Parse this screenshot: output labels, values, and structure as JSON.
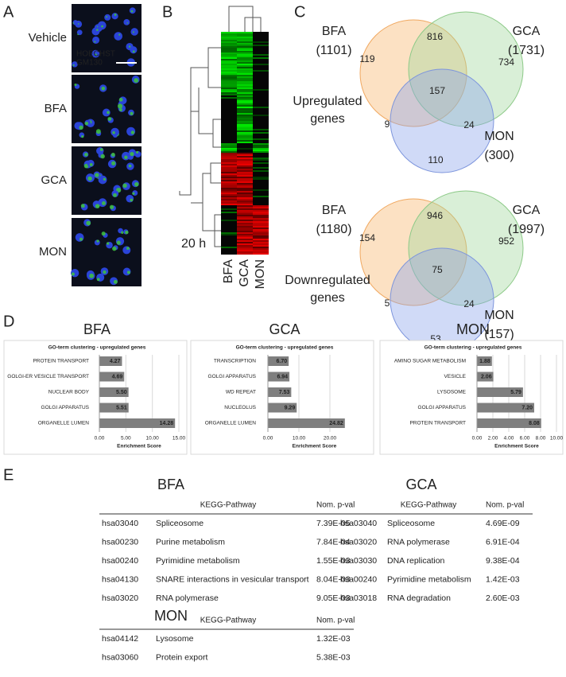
{
  "panel_a": {
    "label": "A",
    "rows": [
      "Vehicle",
      "BFA",
      "GCA",
      "MON"
    ],
    "stains": [
      "HOECHST",
      "GM130"
    ]
  },
  "panel_b": {
    "label": "B",
    "time": "20 h",
    "columns": [
      "BFA",
      "GCA",
      "MON"
    ]
  },
  "panel_c": {
    "label": "C",
    "venns": [
      {
        "sets": [
          {
            "name": "BFA",
            "count": "(1101)"
          },
          {
            "name": "GCA",
            "count": "(1731)"
          },
          {
            "name": "MON",
            "count": "(300)"
          }
        ],
        "regions": [
          "119",
          "816",
          "734",
          "157",
          "9",
          "24",
          "110"
        ],
        "caption": [
          "Upregulated",
          "genes"
        ],
        "caption_color": "#e8312f"
      },
      {
        "sets": [
          {
            "name": "BFA",
            "count": "(1180)"
          },
          {
            "name": "GCA",
            "count": "(1997)"
          },
          {
            "name": "MON",
            "count": "(157)"
          }
        ],
        "regions": [
          "154",
          "946",
          "952",
          "75",
          "5",
          "24",
          "53"
        ],
        "caption": [
          "Downregulated",
          "genes"
        ],
        "caption_color": "#2db34a"
      }
    ]
  },
  "panel_d": {
    "label": "D",
    "charts": [
      {
        "type": "bar",
        "title": "BFA",
        "subtitle": "GO-term clustering - upregulated genes",
        "categories": [
          "PROTEIN TRANSPORT",
          "GOLGI-ER VESICLE TRANSPORT",
          "NUCLEAR BODY",
          "GOLGI APPARATUS",
          "ORGANELLE LUMEN"
        ],
        "values": [
          4.27,
          4.69,
          5.5,
          5.51,
          14.28
        ],
        "value_labels": [
          "4.27",
          "4.69",
          "5.50",
          "5.51",
          "14.28"
        ],
        "color": "#7f7f7f",
        "grid": true,
        "xlim": [
          0,
          15
        ],
        "xticks": [
          {
            "value": 0,
            "label": "0.00"
          },
          {
            "value": 5,
            "label": "5.00"
          },
          {
            "value": 10,
            "label": "10.00"
          },
          {
            "value": 15,
            "label": "15.00"
          }
        ],
        "xlabel": "Enrichment Score"
      },
      {
        "type": "bar",
        "title": "GCA",
        "subtitle": "GO-term clustering - upregulated genes",
        "categories": [
          "TRANSCRIPTION",
          "GOLGI APPARATUS",
          "WD REPEAT",
          "NUCLEOLUS",
          "ORGANELLE LUMEN"
        ],
        "values": [
          6.7,
          6.94,
          7.53,
          9.29,
          24.82
        ],
        "value_labels": [
          "6.70",
          "6.94",
          "7.53",
          "9.29",
          "24.82"
        ],
        "color": "#7f7f7f",
        "grid": true,
        "xlim": [
          0,
          30
        ],
        "xticks": [
          {
            "value": 0,
            "label": "0.00"
          },
          {
            "value": 10,
            "label": "10.00"
          },
          {
            "value": 20,
            "label": "20.00"
          }
        ],
        "xlabel": "Enrichment Score"
      },
      {
        "type": "bar",
        "title": "MON",
        "subtitle": "GO-term clustering - upregulated genes",
        "categories": [
          "AMINO SUGAR METABOLISM",
          "VESICLE",
          "LYSOSOME",
          "GOLGI APPARATUS",
          "PROTEIN TRANSPORT"
        ],
        "values": [
          1.88,
          2.06,
          5.79,
          7.2,
          8.08
        ],
        "value_labels": [
          "1.88",
          "2.06",
          "5.79",
          "7.20",
          "8.08"
        ],
        "color": "#7f7f7f",
        "grid": true,
        "xlim": [
          0,
          10
        ],
        "xticks": [
          {
            "value": 0,
            "label": "0.00"
          },
          {
            "value": 2,
            "label": "2.00"
          },
          {
            "value": 4,
            "label": "4.00"
          },
          {
            "value": 6,
            "label": "6.00"
          },
          {
            "value": 8,
            "label": "8.00"
          },
          {
            "value": 10,
            "label": "10.00"
          }
        ],
        "xlabel": "Enrichment Score"
      }
    ]
  },
  "panel_e": {
    "label": "E",
    "tables": [
      {
        "title": "BFA",
        "header": [
          "KEGG-Pathway",
          "Nom. p-val"
        ],
        "rows": [
          [
            "hsa03040",
            "Spliceosome",
            "7.39E-05"
          ],
          [
            "hsa00230",
            "Purine metabolism",
            "7.84E-04"
          ],
          [
            "hsa00240",
            "Pyrimidine metabolism",
            "1.55E-03"
          ],
          [
            "hsa04130",
            "SNARE interactions in vesicular transport",
            "8.04E-03"
          ],
          [
            "hsa03020",
            "RNA polymerase",
            "9.05E-03"
          ]
        ]
      },
      {
        "title": "GCA",
        "header": [
          "KEGG-Pathway",
          "Nom. p-val"
        ],
        "rows": [
          [
            "hsa03040",
            "Spliceosome",
            "4.69E-09"
          ],
          [
            "hsa03020",
            "RNA polymerase",
            "6.91E-04"
          ],
          [
            "hsa03030",
            "DNA replication",
            "9.38E-04"
          ],
          [
            "hsa00240",
            "Pyrimidine metabolism",
            "1.42E-03"
          ],
          [
            "hsa03018",
            "RNA degradation",
            "2.60E-03"
          ]
        ]
      },
      {
        "title": "MON",
        "header": [
          "KEGG-Pathway",
          "Nom. p-val"
        ],
        "rows": [
          [
            "hsa04142",
            "Lysosome",
            "1.32E-03"
          ],
          [
            "hsa03060",
            "Protein export",
            "5.38E-03"
          ]
        ]
      }
    ]
  }
}
